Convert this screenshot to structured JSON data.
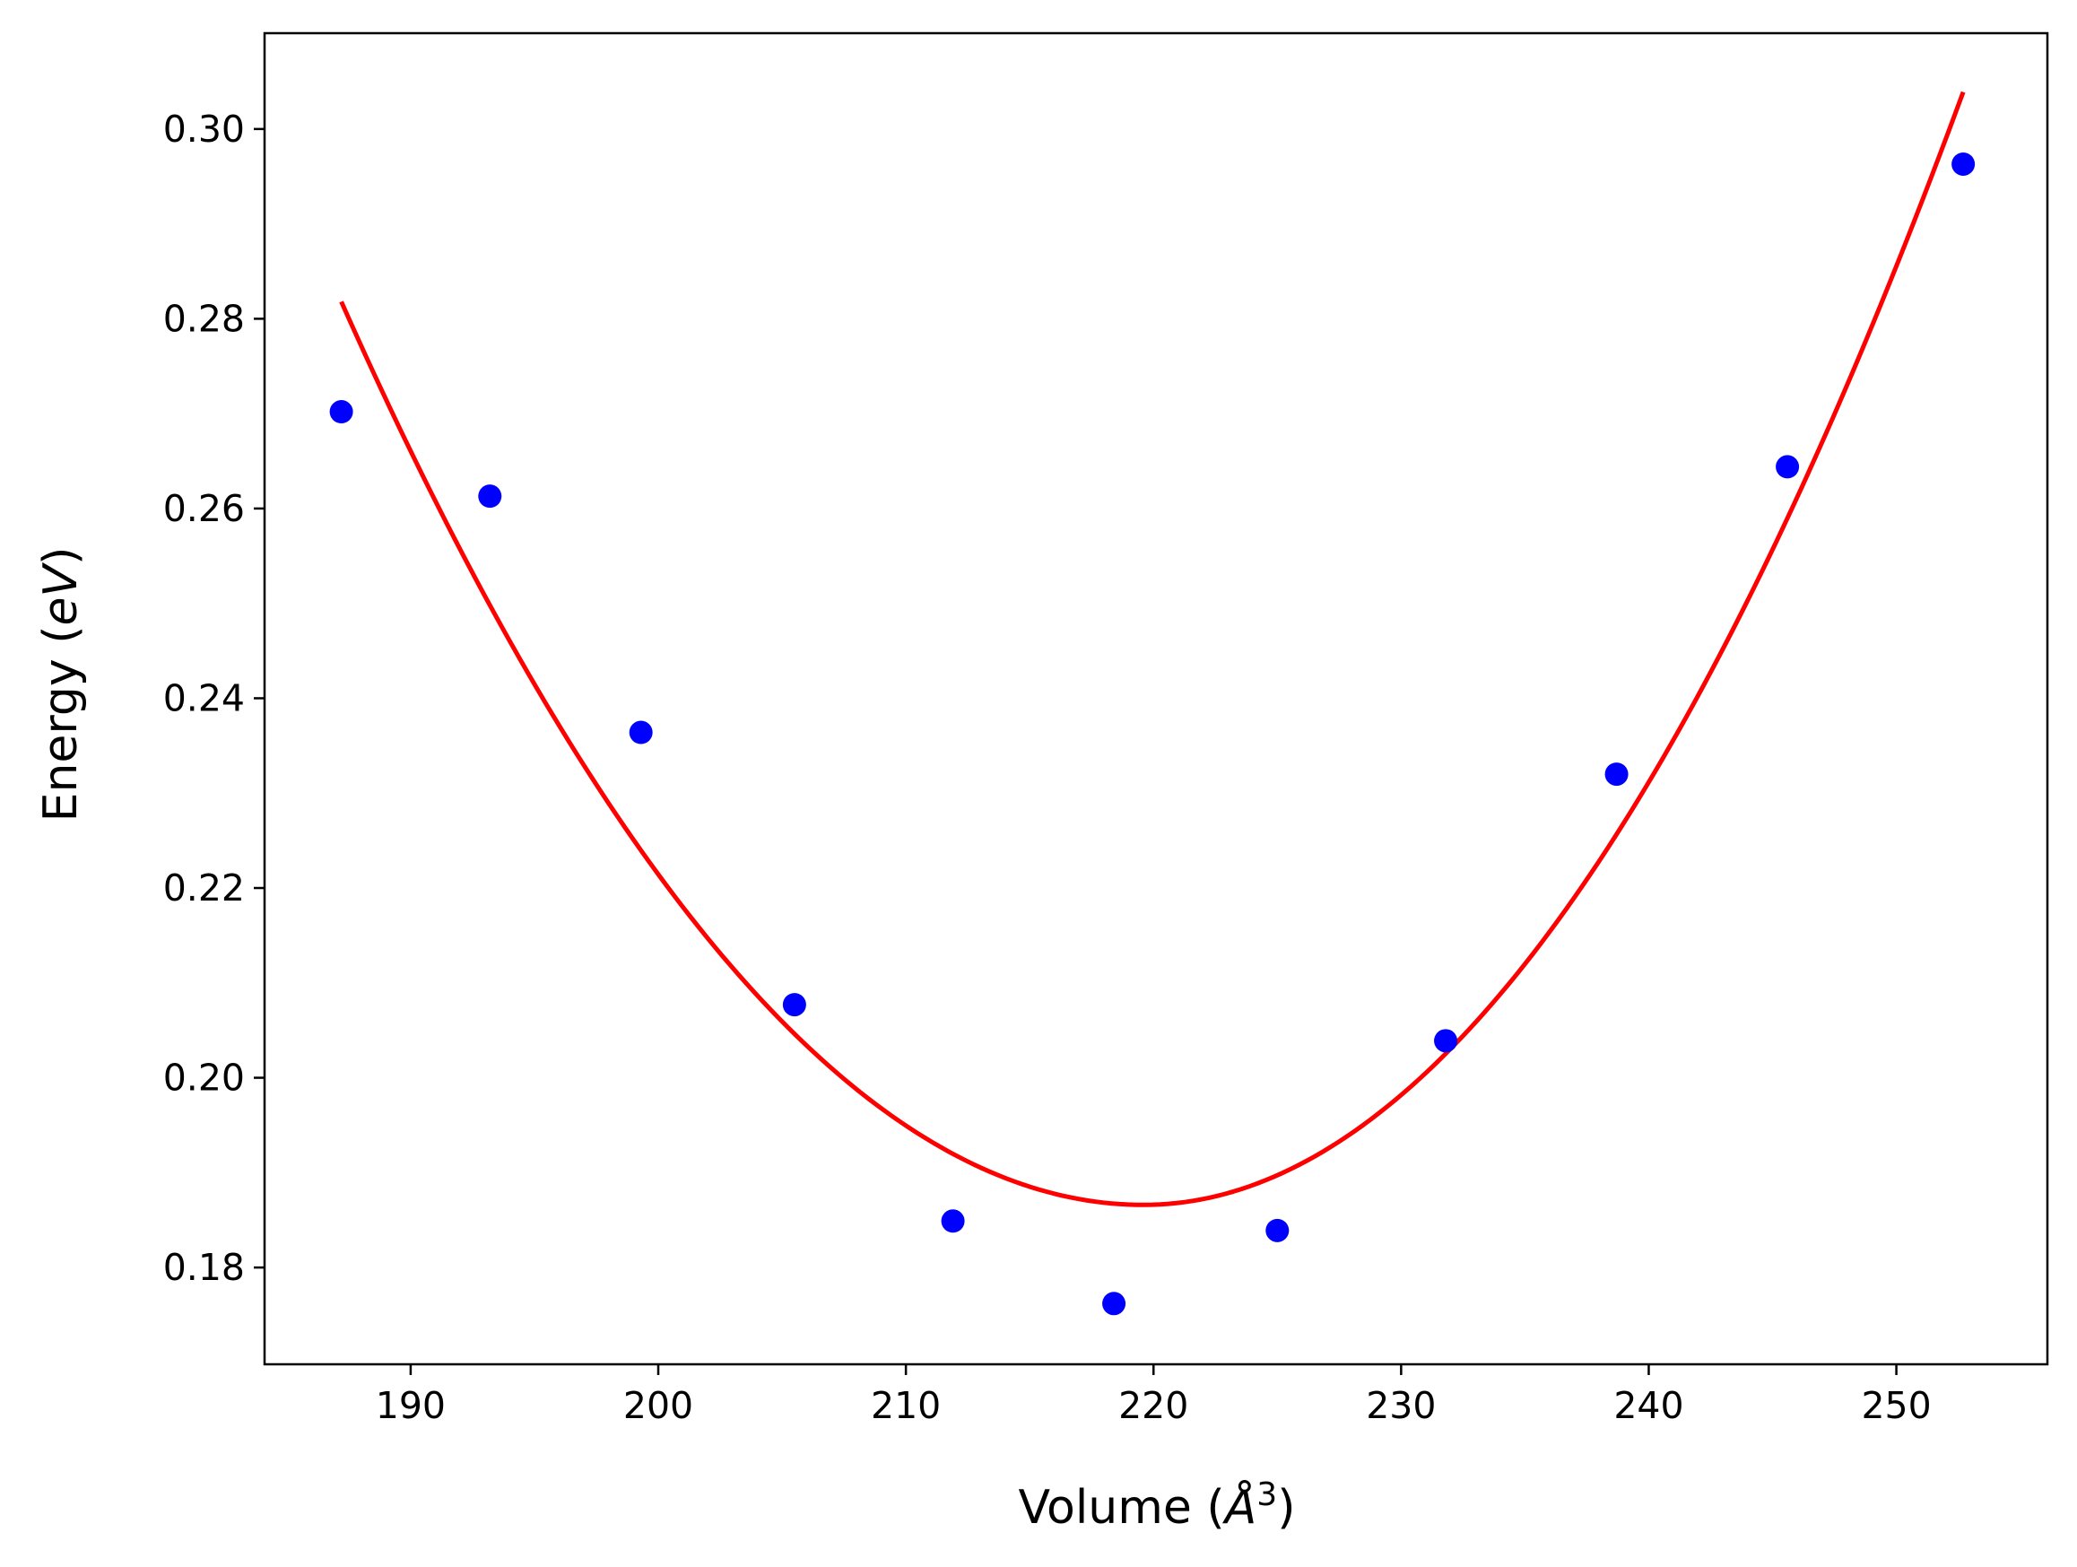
{
  "chart_data": {
    "type": "scatter",
    "title": "",
    "xlabel_main": "Volume (",
    "xlabel_unit": "Å",
    "xlabel_power": "3",
    "xlabel_close": ")",
    "ylabel_main": "Energy (",
    "ylabel_unit": "eV",
    "ylabel_close": ")",
    "xlim": [
      184.1,
      256.1
    ],
    "ylim": [
      0.1698,
      0.3101
    ],
    "xticks": [
      190,
      200,
      210,
      220,
      230,
      240,
      250
    ],
    "yticks": [
      0.18,
      0.2,
      0.22,
      0.24,
      0.26,
      0.28,
      0.3
    ],
    "xtick_labels": [
      "190",
      "200",
      "210",
      "220",
      "230",
      "240",
      "250"
    ],
    "ytick_labels": [
      "0.18",
      "0.20",
      "0.22",
      "0.24",
      "0.26",
      "0.28",
      "0.30"
    ],
    "grid": false,
    "series": [
      {
        "name": "data",
        "kind": "scatter",
        "color": "#0000ff",
        "x": [
          187.2,
          193.2,
          199.3,
          205.5,
          211.9,
          218.4,
          225.0,
          231.8,
          238.7,
          245.6,
          252.7
        ],
        "y": [
          0.2702,
          0.2613,
          0.2364,
          0.2077,
          0.1849,
          0.1762,
          0.1839,
          0.2039,
          0.232,
          0.2644,
          0.2963
        ]
      },
      {
        "name": "fit",
        "kind": "line",
        "color": "#ff0000",
        "vertex_x": 219.6,
        "vertex_y": 0.1866,
        "x_range": [
          187.2,
          252.7
        ],
        "left_end_y": 0.2818,
        "right_end_y": 0.3039
      }
    ]
  }
}
